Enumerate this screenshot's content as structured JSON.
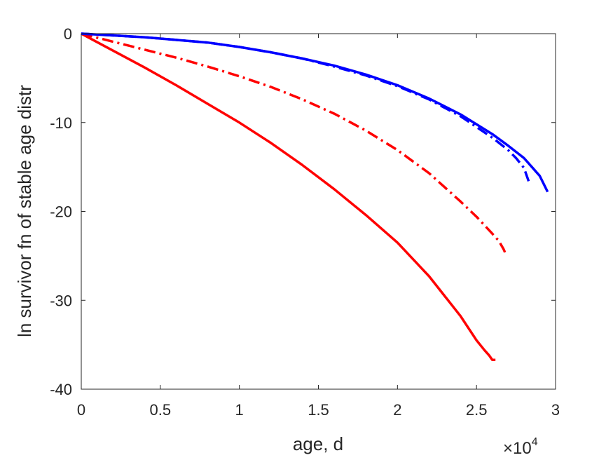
{
  "chart_data": {
    "type": "line",
    "title": "",
    "xlabel": "age, d",
    "ylabel": "ln survivor fn of stable age distr",
    "x_multiplier_label": "×10",
    "x_multiplier_exponent": "4",
    "x_tick_values": [
      0,
      5000,
      10000,
      15000,
      20000,
      25000,
      30000
    ],
    "x_tick_labels": [
      "0",
      "0.5",
      "1",
      "1.5",
      "2",
      "2.5",
      "3"
    ],
    "y_tick_values": [
      0,
      -10,
      -20,
      -30,
      -40
    ],
    "y_tick_labels": [
      "0",
      "-10",
      "-20",
      "-30",
      "-40"
    ],
    "xlim": [
      0,
      30000
    ],
    "ylim": [
      -40,
      0
    ],
    "grid": false,
    "legend": "none",
    "series": [
      {
        "color": "#ff0000",
        "dash": "solid",
        "x": [
          0,
          2000,
          4000,
          6000,
          8000,
          10000,
          12000,
          14000,
          16000,
          18000,
          20000,
          22000,
          24000,
          25000,
          25500,
          25800,
          26000,
          26200
        ],
        "y": [
          0,
          -1.9,
          -3.8,
          -5.8,
          -7.9,
          -10.0,
          -12.3,
          -14.8,
          -17.5,
          -20.4,
          -23.5,
          -27.3,
          -31.8,
          -34.5,
          -35.6,
          -36.2,
          -36.7,
          -36.7
        ]
      },
      {
        "color": "#ff0000",
        "dash": "dashdot",
        "x": [
          0,
          2000,
          4000,
          6000,
          8000,
          10000,
          12000,
          14000,
          16000,
          18000,
          20000,
          22000,
          24000,
          25000,
          26000,
          26400,
          26700,
          26800
        ],
        "y": [
          0,
          -0.9,
          -1.8,
          -2.7,
          -3.7,
          -4.8,
          -6.0,
          -7.4,
          -9.0,
          -10.9,
          -13.1,
          -15.7,
          -18.9,
          -20.6,
          -22.5,
          -23.3,
          -24.2,
          -24.6
        ]
      },
      {
        "color": "#0000ff",
        "dash": "solid",
        "x": [
          0,
          2000,
          4000,
          6000,
          8000,
          10000,
          12000,
          14000,
          16000,
          18000,
          20000,
          22000,
          24000,
          26000,
          27000,
          28000,
          29000,
          29500
        ],
        "y": [
          0,
          -0.2,
          -0.4,
          -0.7,
          -1.0,
          -1.5,
          -2.1,
          -2.8,
          -3.6,
          -4.6,
          -5.8,
          -7.3,
          -9.1,
          -11.3,
          -12.6,
          -14.0,
          -16.0,
          -17.8
        ]
      },
      {
        "color": "#0000ff",
        "dash": "dashdot",
        "x": [
          0,
          2000,
          4000,
          6000,
          8000,
          10000,
          12000,
          14000,
          16000,
          18000,
          20000,
          22000,
          24000,
          26000,
          27000,
          27500,
          28000,
          28300
        ],
        "y": [
          0,
          -0.2,
          -0.4,
          -0.7,
          -1.0,
          -1.5,
          -2.1,
          -2.8,
          -3.7,
          -4.7,
          -5.9,
          -7.4,
          -9.3,
          -11.7,
          -13.1,
          -14.0,
          -15.1,
          -16.6
        ]
      }
    ]
  }
}
